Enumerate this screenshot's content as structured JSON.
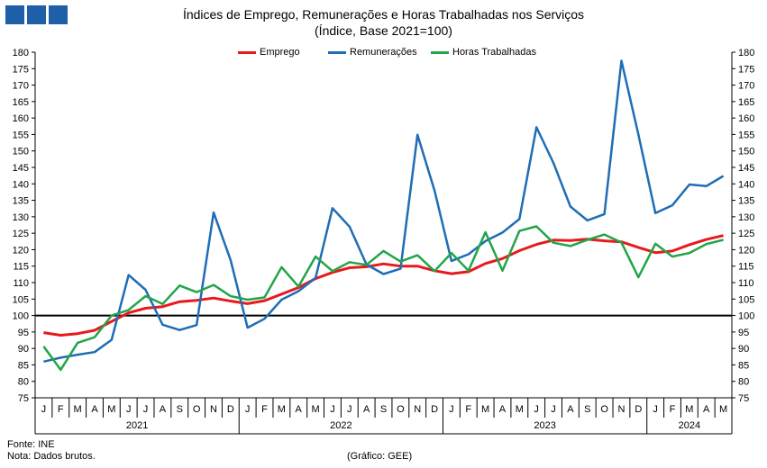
{
  "header": {
    "logo_colors": [
      "#1f5fa8",
      "#1f5fa8",
      "#1f5fa8"
    ],
    "title": "Índices de Emprego, Remunerações e Horas Trabalhadas nos Serviços",
    "subtitle": "(Índice, Base 2021=100)"
  },
  "footer": {
    "source": "Fonte: INE",
    "note": "Nota: Dados brutos.",
    "credit": "(Gráfico: GEE)"
  },
  "chart_data": {
    "type": "line",
    "title": "Índices de Emprego, Remunerações e Horas Trabalhadas nos Serviços",
    "subtitle": "(Índice, Base 2021=100)",
    "x": [
      "J",
      "F",
      "M",
      "A",
      "M",
      "J",
      "J",
      "A",
      "S",
      "O",
      "N",
      "D",
      "J",
      "F",
      "M",
      "A",
      "M",
      "J",
      "J",
      "A",
      "S",
      "O",
      "N",
      "D",
      "J",
      "F",
      "M",
      "A",
      "M",
      "J",
      "J",
      "A",
      "S",
      "O",
      "N",
      "D",
      "J",
      "F",
      "M",
      "A",
      "M"
    ],
    "year_labels": [
      "2021",
      "2022",
      "2023",
      "2024"
    ],
    "ylim": [
      75,
      180
    ],
    "ytick_step": 5,
    "secondary_axis": true,
    "reference_line": 100,
    "grid": false,
    "legend_position": "top-center",
    "series": [
      {
        "name": "Emprego",
        "color": "#e8191d",
        "values": [
          94.8,
          94.0,
          94.5,
          95.5,
          98.2,
          100.8,
          102.2,
          102.7,
          104.2,
          104.6,
          105.3,
          104.4,
          103.6,
          104.5,
          106.5,
          108.5,
          111.2,
          113.1,
          114.5,
          114.8,
          115.7,
          115.0,
          115.0,
          113.6,
          112.7,
          113.3,
          115.8,
          117.3,
          119.7,
          121.6,
          122.9,
          122.8,
          123.2,
          122.7,
          122.4,
          120.7,
          119.1,
          119.6,
          121.5,
          123.1,
          124.3
        ]
      },
      {
        "name": "Remunerações",
        "color": "#1f6db5",
        "values": [
          86.0,
          87.2,
          88.1,
          88.9,
          92.6,
          112.3,
          107.8,
          97.2,
          95.6,
          97.1,
          131.3,
          116.9,
          96.3,
          99.0,
          104.8,
          107.4,
          111.4,
          132.6,
          127.0,
          115.5,
          112.6,
          114.2,
          154.9,
          138.0,
          116.6,
          118.6,
          122.6,
          125.2,
          129.3,
          157.2,
          146.4,
          133.1,
          128.9,
          130.8,
          177.4,
          155.0,
          131.1,
          133.5,
          139.8,
          139.3,
          142.4
        ]
      },
      {
        "name": "Horas Trabalhadas",
        "color": "#22a548",
        "values": [
          90.6,
          83.5,
          91.7,
          93.4,
          100.0,
          101.7,
          105.9,
          103.5,
          109.1,
          107.1,
          109.3,
          105.9,
          104.8,
          105.5,
          114.7,
          108.8,
          117.9,
          113.5,
          116.2,
          115.4,
          119.6,
          116.4,
          118.3,
          113.5,
          119.0,
          113.6,
          125.3,
          113.6,
          125.7,
          127.1,
          122.1,
          121.1,
          123.0,
          124.6,
          122.2,
          111.6,
          121.8,
          117.9,
          119.0,
          121.7,
          123.0
        ]
      }
    ]
  }
}
